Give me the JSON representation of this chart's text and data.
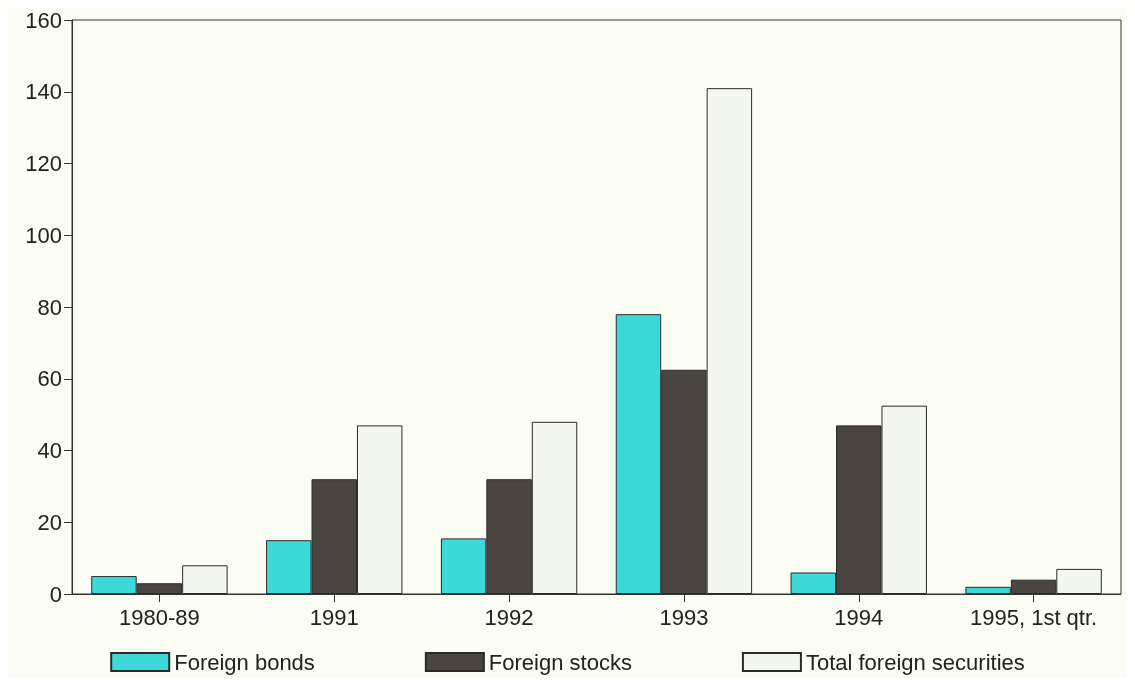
{
  "chart_data": {
    "type": "bar",
    "categories": [
      "1980-89",
      "1991",
      "1992",
      "1993",
      "1994",
      "1995, 1st qtr."
    ],
    "series": [
      {
        "name": "Foreign bonds",
        "color": "#3dd8d8",
        "values": [
          5,
          15,
          15.5,
          78,
          6,
          2
        ]
      },
      {
        "name": "Foreign stocks",
        "color": "#4a4540",
        "values": [
          3,
          32,
          32,
          62.5,
          47,
          4
        ]
      },
      {
        "name": "Total foreign securities",
        "color": "#f4f7ee",
        "values": [
          8,
          47,
          48,
          141,
          52.5,
          7
        ]
      }
    ],
    "ylim": [
      0,
      160
    ],
    "yticks": [
      0,
      20,
      40,
      60,
      80,
      100,
      120,
      140,
      160
    ],
    "grid": false,
    "legend": "bottom"
  }
}
